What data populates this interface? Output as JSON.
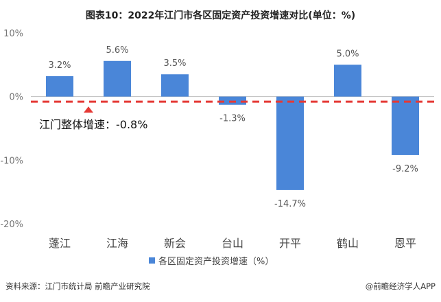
{
  "chart_data": {
    "type": "bar",
    "title": "图表10：2022年江门市各区固定资产投资增速对比(单位：%)",
    "categories": [
      "蓬江",
      "江海",
      "新会",
      "台山",
      "开平",
      "鹤山",
      "恩平"
    ],
    "series": [
      {
        "name": "各区固定资产投资增速（%）",
        "values": [
          3.2,
          5.6,
          3.5,
          -1.3,
          -14.7,
          5.0,
          -9.2
        ],
        "data_labels": [
          "3.2%",
          "5.6%",
          "3.5%",
          "-1.3%",
          "-14.7%",
          "5.0%",
          "-9.2%"
        ]
      }
    ],
    "y_ticks": [
      10,
      0,
      -10,
      -20
    ],
    "y_tick_labels": [
      "10%",
      "0%",
      "-10%",
      "-20%"
    ],
    "ylim": [
      -20,
      10
    ],
    "reference_line": {
      "value": -0.8,
      "label": "江门整体增速：-0.8%"
    },
    "colors": {
      "bar": "#4a86d8",
      "reference": "#e53935",
      "axis": "#bbbbbb"
    },
    "legend_position": "bottom-center",
    "grid": false
  },
  "footer": {
    "source": "资料来源：江门市统计局 前瞻产业研究院",
    "brand": "@前瞻经济学人APP"
  }
}
